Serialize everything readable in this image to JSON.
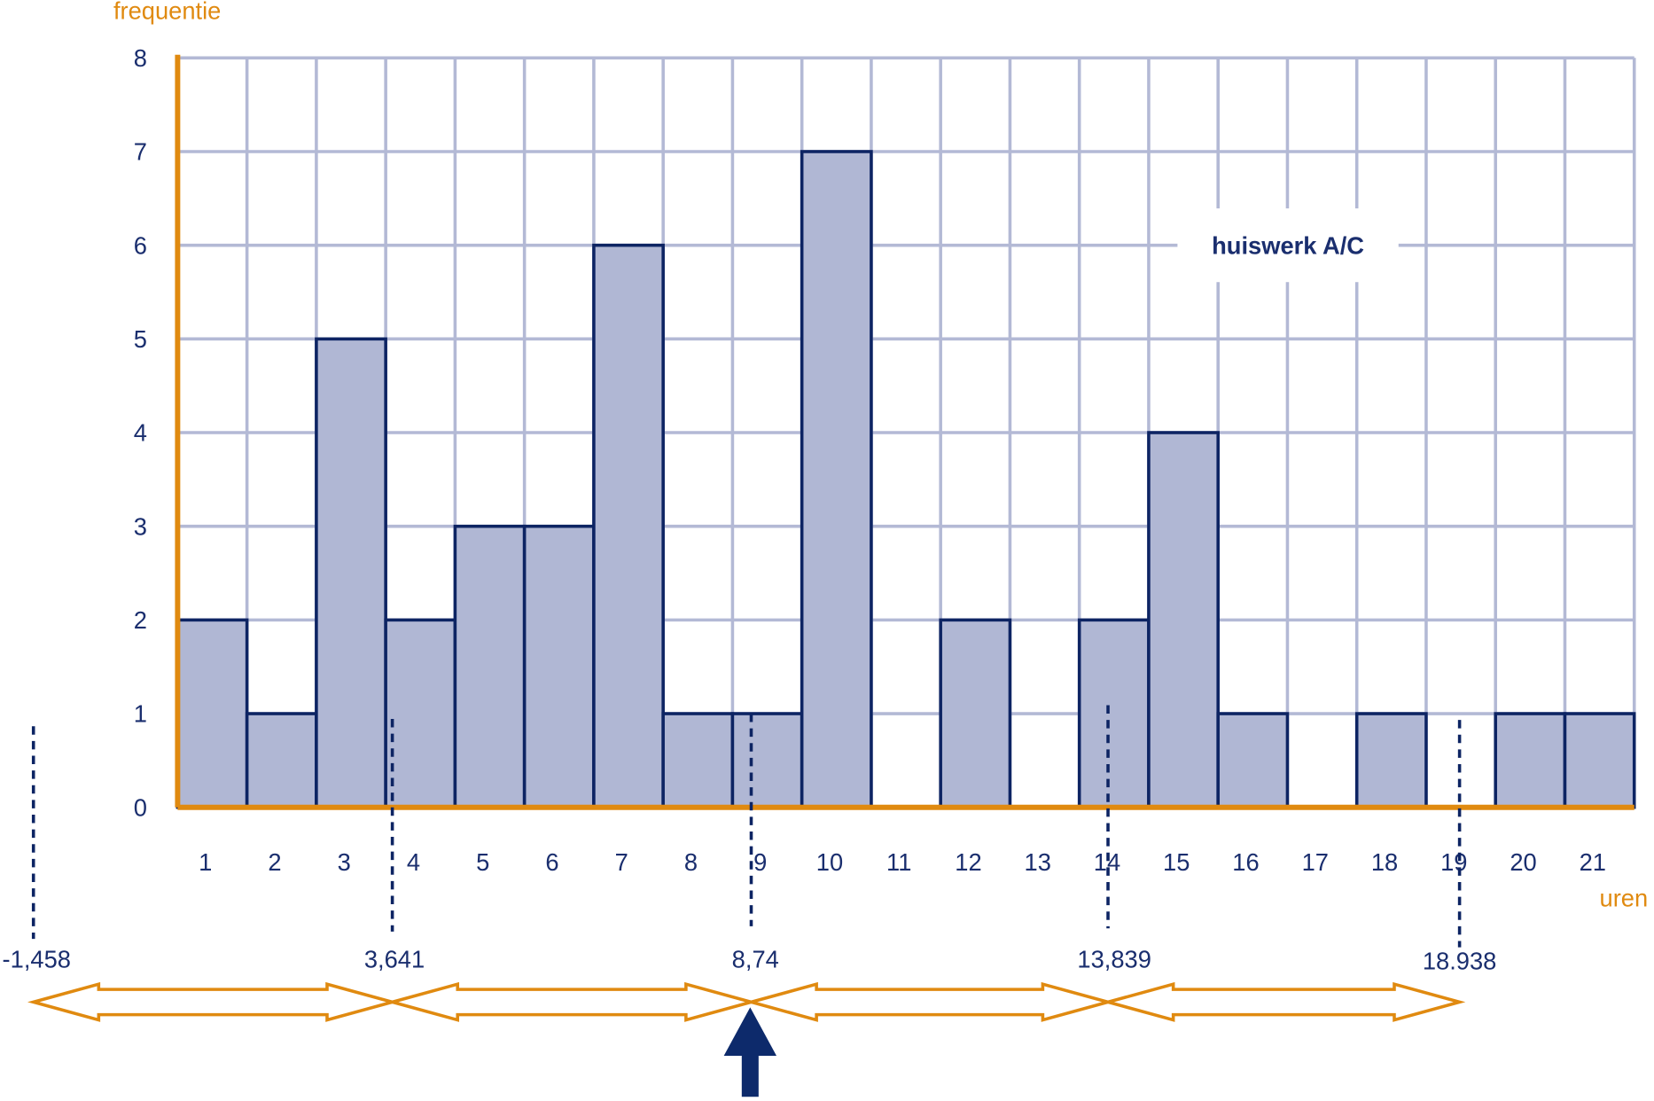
{
  "chart_data": {
    "type": "bar",
    "y_label": "frequentie",
    "x_label": "uren",
    "legend": "huiswerk A/C",
    "categories": [
      "1",
      "2",
      "3",
      "4",
      "5",
      "6",
      "7",
      "8",
      "9",
      "10",
      "11",
      "12",
      "13",
      "14",
      "15",
      "16",
      "17",
      "18",
      "19",
      "20",
      "21"
    ],
    "values": [
      2,
      1,
      5,
      2,
      3,
      3,
      6,
      1,
      1,
      7,
      0,
      2,
      0,
      2,
      4,
      1,
      0,
      1,
      0,
      1,
      1
    ],
    "color": "#b0b7d4",
    "ylim": [
      0,
      8
    ],
    "yticks": [
      0,
      1,
      2,
      3,
      4,
      5,
      6,
      7,
      8
    ],
    "grid": true,
    "annotations": [
      "-1,458",
      "3,641",
      "8,74",
      "13,839",
      "18.938"
    ]
  }
}
